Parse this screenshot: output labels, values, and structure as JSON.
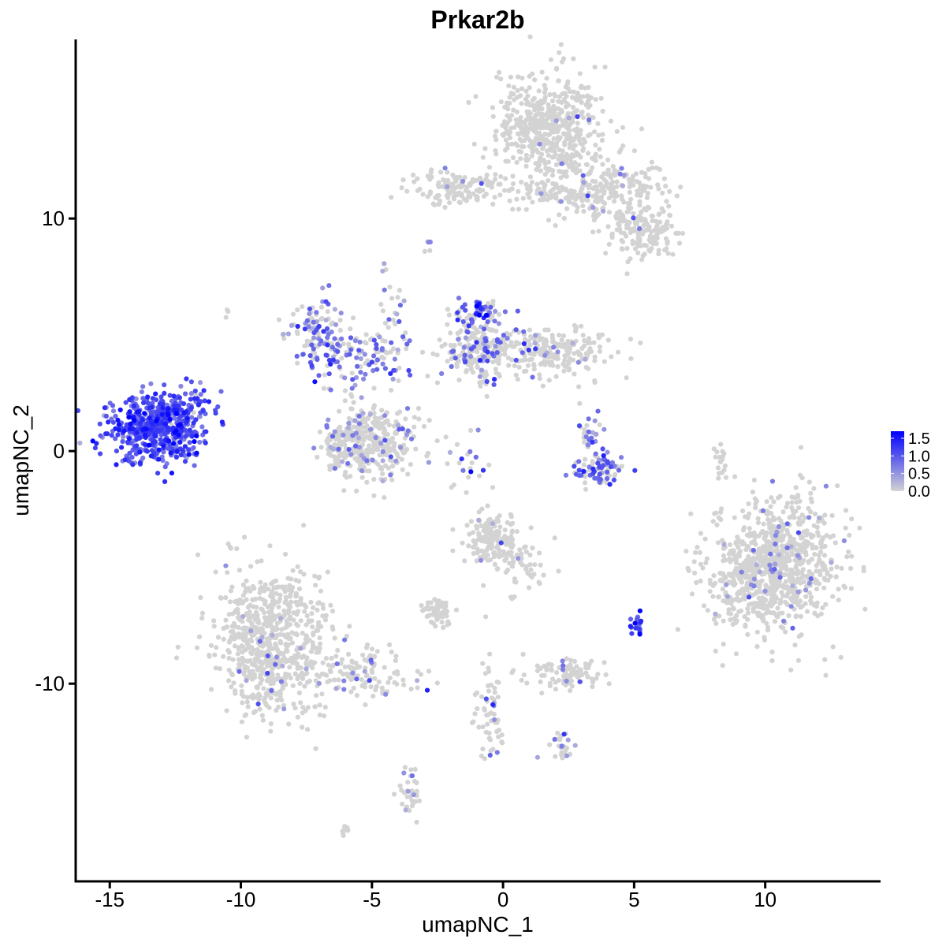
{
  "chart_data": {
    "type": "scatter",
    "title": "Prkar2b",
    "xlabel": "umapNC_1",
    "ylabel": "umapNC_2",
    "xlim": [
      -16.3,
      14.4
    ],
    "ylim": [
      -18.5,
      17.7
    ],
    "x_ticks": [
      -15,
      -10,
      -5,
      0,
      5,
      10
    ],
    "x_tick_labels": [
      "-15",
      "-10",
      "-5",
      "0",
      "5",
      "10"
    ],
    "y_ticks": [
      -10,
      0,
      10
    ],
    "y_tick_labels": [
      "-10",
      "0",
      "10"
    ],
    "grid": false,
    "color_scale": {
      "name": "",
      "low_color": "#d3d3d3",
      "high_color": "#0000ff",
      "min": 0.0,
      "max": 1.7,
      "breaks": [
        0.0,
        0.5,
        1.0,
        1.5
      ],
      "break_labels": [
        "0.0",
        "0.5",
        "1.0",
        "1.5"
      ],
      "legend_position": "right"
    },
    "clusters": [
      {
        "cx": 1.8,
        "cy": 14.0,
        "sx": 1.0,
        "sy": 1.2,
        "n": 520,
        "expr_rate": 0.02,
        "expr_mean": 0.6
      },
      {
        "cx": 3.8,
        "cy": 11.2,
        "sx": 1.3,
        "sy": 0.7,
        "n": 220,
        "expr_rate": 0.04,
        "expr_mean": 0.6
      },
      {
        "cx": 5.3,
        "cy": 9.5,
        "sx": 0.7,
        "sy": 0.6,
        "n": 160,
        "expr_rate": 0.03,
        "expr_mean": 0.6
      },
      {
        "cx": -1.6,
        "cy": 11.3,
        "sx": 1.0,
        "sy": 0.35,
        "n": 140,
        "expr_rate": 0.03,
        "expr_mean": 0.7
      },
      {
        "cx": 1.4,
        "cy": 11.0,
        "sx": 0.9,
        "sy": 0.4,
        "n": 40,
        "expr_rate": 0.02,
        "expr_mean": 0.6
      },
      {
        "cx": -7.0,
        "cy": 5.0,
        "sx": 0.6,
        "sy": 0.8,
        "n": 110,
        "expr_rate": 0.55,
        "expr_mean": 0.7
      },
      {
        "cx": -5.2,
        "cy": 4.0,
        "sx": 0.9,
        "sy": 0.6,
        "n": 90,
        "expr_rate": 0.45,
        "expr_mean": 0.8
      },
      {
        "cx": -4.3,
        "cy": 5.8,
        "sx": 0.3,
        "sy": 1.2,
        "n": 30,
        "expr_rate": 0.4,
        "expr_mean": 0.8
      },
      {
        "cx": -5.0,
        "cy": 0.4,
        "sx": 0.9,
        "sy": 0.8,
        "n": 320,
        "expr_rate": 0.12,
        "expr_mean": 0.6
      },
      {
        "cx": -6.0,
        "cy": 0.4,
        "sx": 0.4,
        "sy": 0.6,
        "n": 80,
        "expr_rate": 0.12,
        "expr_mean": 0.6
      },
      {
        "cx": -0.9,
        "cy": 4.5,
        "sx": 0.7,
        "sy": 0.8,
        "n": 230,
        "expr_rate": 0.25,
        "expr_mean": 0.8
      },
      {
        "cx": -1.0,
        "cy": 6.0,
        "sx": 0.3,
        "sy": 0.3,
        "n": 40,
        "expr_rate": 0.8,
        "expr_mean": 1.1
      },
      {
        "cx": 1.8,
        "cy": 4.2,
        "sx": 1.2,
        "sy": 0.5,
        "n": 220,
        "expr_rate": 0.12,
        "expr_mean": 0.7
      },
      {
        "cx": -13.3,
        "cy": 1.0,
        "sx": 0.85,
        "sy": 0.7,
        "n": 520,
        "expr_rate": 0.98,
        "expr_mean": 1.05
      },
      {
        "cx": -12.0,
        "cy": 1.9,
        "sx": 0.5,
        "sy": 0.5,
        "n": 50,
        "expr_rate": 0.95,
        "expr_mean": 0.95
      },
      {
        "cx": -12.5,
        "cy": 0.0,
        "sx": 0.4,
        "sy": 0.15,
        "n": 30,
        "expr_rate": 0.9,
        "expr_mean": 0.9
      },
      {
        "cx": 3.7,
        "cy": -0.8,
        "sx": 0.5,
        "sy": 0.35,
        "n": 80,
        "expr_rate": 0.55,
        "expr_mean": 0.9
      },
      {
        "cx": 3.3,
        "cy": 0.6,
        "sx": 0.2,
        "sy": 0.6,
        "n": 30,
        "expr_rate": 0.45,
        "expr_mean": 0.8
      },
      {
        "cx": 10.5,
        "cy": -4.8,
        "sx": 1.2,
        "sy": 1.5,
        "n": 760,
        "expr_rate": 0.05,
        "expr_mean": 0.6
      },
      {
        "cx": 9.5,
        "cy": -5.9,
        "sx": 0.8,
        "sy": 0.8,
        "n": 160,
        "expr_rate": 0.07,
        "expr_mean": 0.6
      },
      {
        "cx": 8.3,
        "cy": -0.5,
        "sx": 0.12,
        "sy": 0.5,
        "n": 18,
        "expr_rate": 0.0,
        "expr_mean": 0.5
      },
      {
        "cx": -0.4,
        "cy": -3.9,
        "sx": 0.5,
        "sy": 0.6,
        "n": 170,
        "expr_rate": 0.03,
        "expr_mean": 0.6
      },
      {
        "cx": 0.9,
        "cy": -4.9,
        "sx": 0.4,
        "sy": 0.5,
        "n": 40,
        "expr_rate": 0.02,
        "expr_mean": 0.6
      },
      {
        "cx": -8.8,
        "cy": -8.2,
        "sx": 1.1,
        "sy": 1.6,
        "n": 720,
        "expr_rate": 0.03,
        "expr_mean": 0.6
      },
      {
        "cx": -5.2,
        "cy": -9.6,
        "sx": 1.0,
        "sy": 0.5,
        "n": 110,
        "expr_rate": 0.08,
        "expr_mean": 0.6
      },
      {
        "cx": -2.5,
        "cy": -6.9,
        "sx": 0.3,
        "sy": 0.3,
        "n": 60,
        "expr_rate": 0.0,
        "expr_mean": 0.5
      },
      {
        "cx": 2.5,
        "cy": -9.6,
        "sx": 0.7,
        "sy": 0.35,
        "n": 100,
        "expr_rate": 0.04,
        "expr_mean": 0.6
      },
      {
        "cx": -0.5,
        "cy": -11.0,
        "sx": 0.25,
        "sy": 1.2,
        "n": 60,
        "expr_rate": 0.2,
        "expr_mean": 0.7
      },
      {
        "cx": 5.1,
        "cy": -7.5,
        "sx": 0.15,
        "sy": 0.3,
        "n": 18,
        "expr_rate": 1.0,
        "expr_mean": 1.15
      },
      {
        "cx": -3.5,
        "cy": -14.8,
        "sx": 0.2,
        "sy": 0.7,
        "n": 35,
        "expr_rate": 0.15,
        "expr_mean": 0.6
      },
      {
        "cx": 2.3,
        "cy": -12.7,
        "sx": 0.3,
        "sy": 0.3,
        "n": 25,
        "expr_rate": 0.3,
        "expr_mean": 0.6
      },
      {
        "cx": -1.5,
        "cy": -0.9,
        "sx": 0.5,
        "sy": 0.9,
        "n": 25,
        "expr_rate": 0.35,
        "expr_mean": 0.7
      },
      {
        "cx": 0.4,
        "cy": -6.3,
        "sx": 0.1,
        "sy": 0.1,
        "n": 4,
        "expr_rate": 0.0,
        "expr_mean": 0.5
      },
      {
        "cx": -6.0,
        "cy": -16.3,
        "sx": 0.15,
        "sy": 0.1,
        "n": 8,
        "expr_rate": 0.0,
        "expr_mean": 0.5
      },
      {
        "cx": -2.8,
        "cy": 8.8,
        "sx": 0.1,
        "sy": 0.2,
        "n": 6,
        "expr_rate": 0.3,
        "expr_mean": 0.6
      },
      {
        "cx": -10.5,
        "cy": 6.0,
        "sx": 0.1,
        "sy": 0.1,
        "n": 3,
        "expr_rate": 0.0,
        "expr_mean": 0.5
      }
    ],
    "random_seed": 12345
  }
}
